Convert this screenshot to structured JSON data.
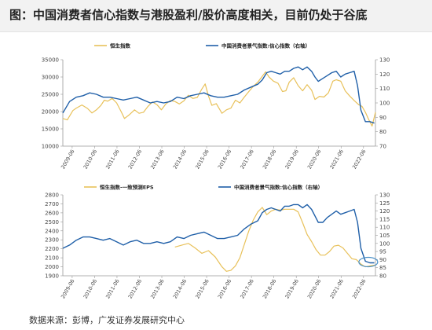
{
  "title": "图：中国消费者信心指数与港股盈利/股价高度相关，目前仍处于谷底",
  "source": "数据来源：彭博，广发证券发展研究中心",
  "colors": {
    "yellow": "#e8c15a",
    "blue": "#1f5fa8",
    "axis": "#999999",
    "text": "#444444",
    "circle": "#4a90c8"
  },
  "chart_data": [
    {
      "type": "line",
      "title": "",
      "x_ticks": [
        "2009-06",
        "2010-06",
        "2011-06",
        "2012-06",
        "2013-06",
        "2014-06",
        "2015-06",
        "2016-06",
        "2017-06",
        "2018-06",
        "2019-06",
        "2020-06",
        "2021-06",
        "2022-06"
      ],
      "x_start": 2009.0,
      "x_end": 2022.95,
      "ylim_left": [
        10000,
        35000
      ],
      "yticks_left": [
        10000,
        15000,
        20000,
        25000,
        30000,
        35000
      ],
      "ylim_right": [
        70,
        130
      ],
      "yticks_right": [
        70,
        80,
        90,
        100,
        110,
        120,
        130
      ],
      "legend": "top",
      "grid": false,
      "series": [
        {
          "name": "恒生指数",
          "color": "yellow",
          "axis": "left",
          "x": [
            2009.0,
            2009.2,
            2009.45,
            2009.6,
            2009.85,
            2010.1,
            2010.3,
            2010.5,
            2010.7,
            2010.85,
            2011.0,
            2011.2,
            2011.4,
            2011.6,
            2011.75,
            2011.95,
            2012.2,
            2012.4,
            2012.6,
            2012.8,
            2013.0,
            2013.2,
            2013.4,
            2013.6,
            2013.8,
            2014.0,
            2014.2,
            2014.4,
            2014.6,
            2014.8,
            2015.0,
            2015.2,
            2015.35,
            2015.5,
            2015.65,
            2015.85,
            2016.1,
            2016.3,
            2016.5,
            2016.7,
            2016.9,
            2017.1,
            2017.3,
            2017.5,
            2017.7,
            2017.9,
            2018.05,
            2018.2,
            2018.4,
            2018.6,
            2018.8,
            2018.95,
            2019.1,
            2019.3,
            2019.5,
            2019.7,
            2019.9,
            2020.1,
            2020.25,
            2020.45,
            2020.65,
            2020.85,
            2021.05,
            2021.2,
            2021.4,
            2021.6,
            2021.8,
            2022.0,
            2022.2,
            2022.35,
            2022.5,
            2022.65,
            2022.8,
            2022.95
          ],
          "y": [
            18000,
            17600,
            20300,
            21000,
            21900,
            20900,
            19600,
            20500,
            21800,
            23300,
            23000,
            23800,
            22500,
            20000,
            18000,
            19000,
            20500,
            19500,
            19800,
            21500,
            22800,
            22000,
            20500,
            22200,
            23200,
            22900,
            22200,
            23100,
            24700,
            23800,
            24100,
            26500,
            28000,
            24500,
            21800,
            22300,
            19500,
            20500,
            21000,
            23300,
            22500,
            24200,
            25800,
            27300,
            28500,
            30200,
            31500,
            30000,
            28800,
            28200,
            25800,
            26000,
            28500,
            29800,
            27500,
            26000,
            27800,
            26200,
            23500,
            24400,
            24200,
            25400,
            28800,
            29200,
            28800,
            26000,
            24500,
            23200,
            22000,
            21500,
            19800,
            17700,
            15800,
            19800
          ]
        },
        {
          "name": "中国消费者景气指数:信心指数（右轴）",
          "color": "blue",
          "axis": "right",
          "x": [
            2009.0,
            2009.3,
            2009.6,
            2009.9,
            2010.2,
            2010.5,
            2010.8,
            2011.1,
            2011.4,
            2011.7,
            2012.0,
            2012.3,
            2012.6,
            2012.9,
            2013.2,
            2013.5,
            2013.8,
            2014.1,
            2014.4,
            2014.7,
            2015.0,
            2015.3,
            2015.6,
            2015.9,
            2016.2,
            2016.5,
            2016.8,
            2017.1,
            2017.4,
            2017.7,
            2017.9,
            2018.1,
            2018.3,
            2018.5,
            2018.7,
            2018.9,
            2019.1,
            2019.3,
            2019.5,
            2019.7,
            2019.9,
            2020.1,
            2020.25,
            2020.4,
            2020.6,
            2020.8,
            2021.0,
            2021.2,
            2021.4,
            2021.6,
            2021.8,
            2022.0,
            2022.15,
            2022.3,
            2022.5,
            2022.7,
            2022.9
          ],
          "y": [
            93,
            101,
            104,
            105,
            107,
            106,
            104,
            104,
            103,
            102,
            103,
            104,
            102,
            100,
            101,
            100,
            101,
            104,
            103,
            105,
            106,
            107,
            105,
            104,
            104,
            105,
            106,
            109,
            111,
            113,
            116,
            121,
            122,
            121,
            120,
            122,
            122,
            124,
            125,
            123,
            125,
            122,
            118,
            115,
            117,
            119,
            121,
            122,
            118,
            120,
            121,
            122,
            112,
            95,
            87,
            87,
            86
          ]
        }
      ]
    },
    {
      "type": "line",
      "title": "",
      "x_ticks": [
        "2009-06",
        "2010-06",
        "2011-06",
        "2012-06",
        "2013-06",
        "2014-06",
        "2015-06",
        "2016-06",
        "2017-06",
        "2018-06",
        "2019-06",
        "2020-06",
        "2021-06",
        "2022-06"
      ],
      "x_start": 2009.0,
      "x_end": 2022.95,
      "ylim_left": [
        1900,
        2800
      ],
      "yticks_left": [
        1900,
        2000,
        2100,
        2200,
        2300,
        2400,
        2500,
        2600,
        2700,
        2800
      ],
      "ylim_right": [
        80,
        130
      ],
      "yticks_right": [
        80,
        85,
        90,
        95,
        100,
        105,
        110,
        115,
        120,
        125,
        130
      ],
      "legend": "top",
      "grid": false,
      "annotation": "circle around the last data points",
      "series": [
        {
          "name": "恒生指数-一致预测EPS",
          "color": "yellow",
          "axis": "left",
          "x": [
            2014.0,
            2014.3,
            2014.6,
            2014.9,
            2015.2,
            2015.5,
            2015.8,
            2016.1,
            2016.3,
            2016.5,
            2016.7,
            2016.9,
            2017.1,
            2017.3,
            2017.5,
            2017.7,
            2017.9,
            2018.1,
            2018.3,
            2018.5,
            2018.7,
            2018.9,
            2019.1,
            2019.3,
            2019.5,
            2019.7,
            2019.9,
            2020.1,
            2020.3,
            2020.5,
            2020.7,
            2020.9,
            2021.1,
            2021.3,
            2021.5,
            2021.7,
            2021.9,
            2022.1,
            2022.3,
            2022.5,
            2022.7,
            2022.95
          ],
          "y": [
            2220,
            2240,
            2260,
            2210,
            2150,
            2180,
            2110,
            2000,
            1950,
            1960,
            2010,
            2100,
            2250,
            2400,
            2520,
            2610,
            2660,
            2580,
            2620,
            2640,
            2630,
            2640,
            2640,
            2640,
            2610,
            2490,
            2360,
            2280,
            2190,
            2130,
            2130,
            2170,
            2230,
            2240,
            2210,
            2150,
            2090,
            2080,
            2030,
            2000,
            2010,
            2020
          ]
        },
        {
          "name": "中国消费者景气指数:信心指数（右轴）",
          "color": "blue",
          "axis": "right",
          "x": [
            2009.0,
            2009.3,
            2009.6,
            2009.9,
            2010.2,
            2010.5,
            2010.8,
            2011.1,
            2011.4,
            2011.7,
            2012.0,
            2012.3,
            2012.6,
            2012.9,
            2013.2,
            2013.5,
            2013.8,
            2014.1,
            2014.4,
            2014.7,
            2015.0,
            2015.3,
            2015.6,
            2015.9,
            2016.2,
            2016.5,
            2016.8,
            2017.1,
            2017.4,
            2017.7,
            2017.9,
            2018.1,
            2018.3,
            2018.5,
            2018.7,
            2018.9,
            2019.1,
            2019.3,
            2019.5,
            2019.7,
            2019.9,
            2020.1,
            2020.25,
            2020.4,
            2020.6,
            2020.8,
            2021.0,
            2021.2,
            2021.4,
            2021.6,
            2021.8,
            2022.0,
            2022.15,
            2022.3,
            2022.5,
            2022.7,
            2022.9
          ],
          "y": [
            97,
            99,
            102,
            104,
            104,
            103,
            102,
            103,
            101,
            99,
            101,
            102,
            100,
            100,
            101,
            100,
            101,
            104,
            103,
            105,
            106,
            107,
            105,
            103,
            103,
            104,
            105,
            109,
            112,
            114,
            119,
            121,
            122,
            121,
            120,
            123,
            123,
            124,
            124,
            122,
            124,
            121,
            117,
            113,
            113,
            116,
            118,
            120,
            118,
            119,
            120,
            121,
            113,
            97,
            89,
            88,
            88
          ]
        }
      ]
    }
  ]
}
